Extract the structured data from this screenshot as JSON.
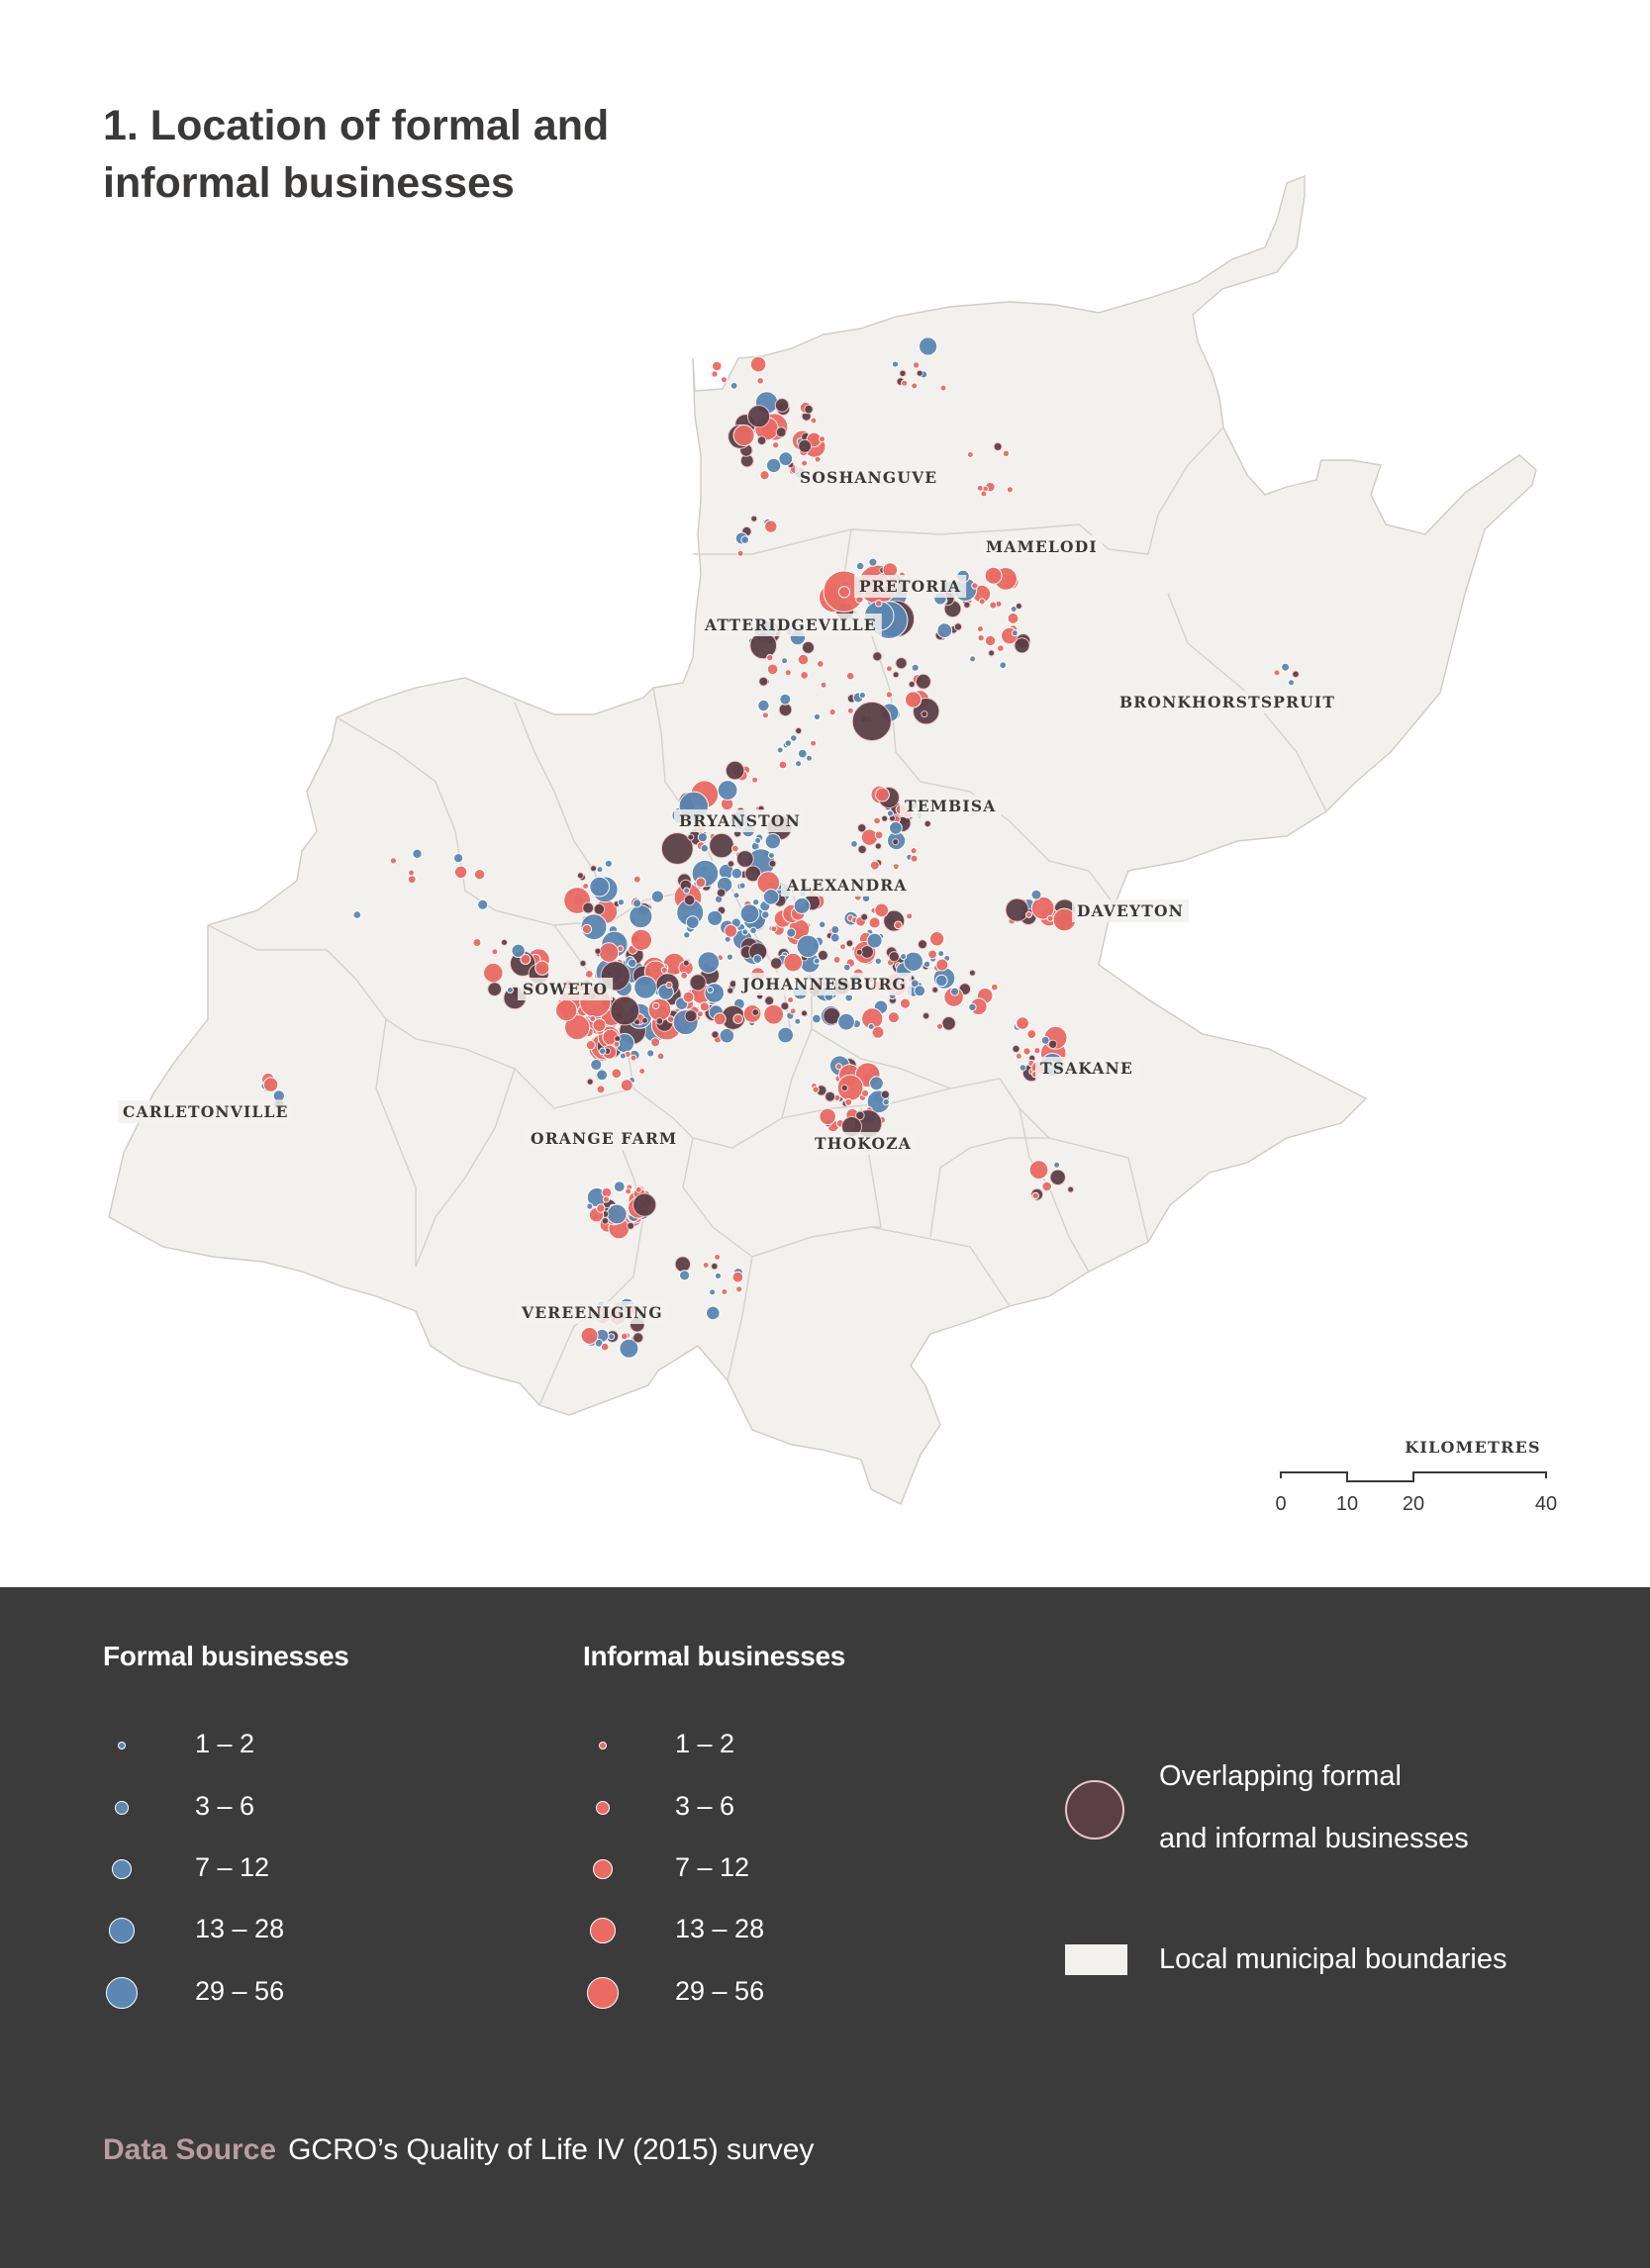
{
  "title": "1. Location of formal and informal businesses",
  "places": [
    {
      "name": "SOSHANGUVE"
    },
    {
      "name": "MAMELODI"
    },
    {
      "name": "PRETORIA"
    },
    {
      "name": "ATTERIDGEVILLE"
    },
    {
      "name": "BRONKHORSTSPRUIT"
    },
    {
      "name": "TEMBISA"
    },
    {
      "name": "BRYANSTON"
    },
    {
      "name": "ALEXANDRA"
    },
    {
      "name": "DAVEYTON"
    },
    {
      "name": "SOWETO"
    },
    {
      "name": "JOHANNESBURG"
    },
    {
      "name": "TSAKANE"
    },
    {
      "name": "CARLETONVILLE"
    },
    {
      "name": "ORANGE FARM"
    },
    {
      "name": "THOKOZA"
    },
    {
      "name": "VEREENIGING"
    }
  ],
  "scale": {
    "title": "KILOMETRES",
    "ticks": [
      "0",
      "10",
      "20",
      "40"
    ]
  },
  "legend": {
    "formal": {
      "heading": "Formal businesses",
      "color": "#5b87b2",
      "classes": [
        "1 – 2",
        "3 – 6",
        "7 – 12",
        "13 – 28",
        "29 – 56"
      ]
    },
    "informal": {
      "heading": "Informal businesses",
      "color": "#ea6b64",
      "classes": [
        "1 – 2",
        "3 – 6",
        "7 – 12",
        "13 – 28",
        "29 – 56"
      ]
    },
    "overlap": {
      "label_line1": "Overlapping formal",
      "label_line2": "and informal businesses",
      "color": "#5b3f47"
    },
    "boundaries": {
      "label": "Local municipal boundaries",
      "color": "#f3f1ed"
    }
  },
  "source": {
    "label": "Data Source",
    "text": "GCRO’s Quality of Life IV (2015) survey"
  }
}
